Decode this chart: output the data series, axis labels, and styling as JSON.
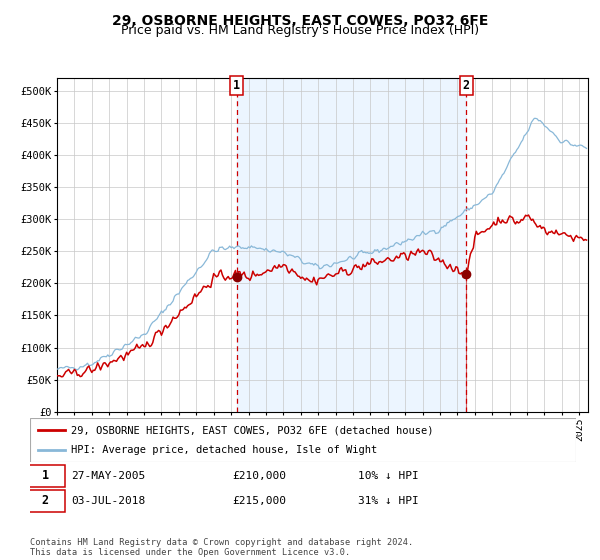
{
  "title": "29, OSBORNE HEIGHTS, EAST COWES, PO32 6FE",
  "subtitle": "Price paid vs. HM Land Registry's House Price Index (HPI)",
  "title_fontsize": 10,
  "subtitle_fontsize": 9,
  "hpi_color": "#89b8d8",
  "property_color": "#cc0000",
  "bg_fill_color": "#ddeeff",
  "purchase1_date": "27-MAY-2005",
  "purchase1_price": 210000,
  "purchase1_label": "1",
  "purchase1_hpi_pct": "10% ↓ HPI",
  "purchase2_date": "03-JUL-2018",
  "purchase2_price": 215000,
  "purchase2_label": "2",
  "purchase2_hpi_pct": "31% ↓ HPI",
  "legend1": "29, OSBORNE HEIGHTS, EAST COWES, PO32 6FE (detached house)",
  "legend2": "HPI: Average price, detached house, Isle of Wight",
  "footnote": "Contains HM Land Registry data © Crown copyright and database right 2024.\nThis data is licensed under the Open Government Licence v3.0.",
  "ylabel_values": [
    0,
    50000,
    100000,
    150000,
    200000,
    250000,
    300000,
    350000,
    400000,
    450000,
    500000
  ],
  "ylim": [
    0,
    520000
  ],
  "start_year": 1995,
  "end_year": 2025
}
